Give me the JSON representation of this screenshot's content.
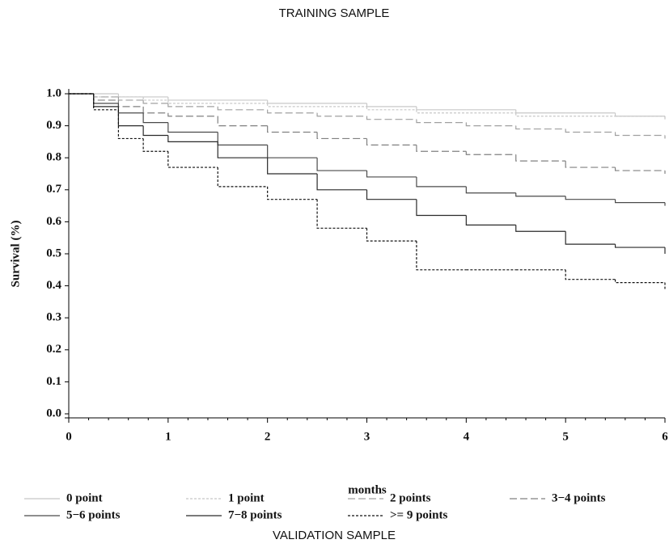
{
  "chart_data": {
    "type": "step-line",
    "title": "TRAINING SAMPLE",
    "subtitle": "VALIDATION SAMPLE",
    "x_label": "months",
    "y_label": "Survival (%)",
    "x": [
      0,
      0.25,
      0.5,
      0.75,
      1,
      1.5,
      2,
      2.5,
      3,
      3.5,
      4,
      4.5,
      5,
      5.5,
      6
    ],
    "series": [
      {
        "name": "0 point",
        "color": "#c8c8c8",
        "dash": "solid",
        "values": [
          1,
          1,
          0.99,
          0.99,
          0.98,
          0.98,
          0.97,
          0.97,
          0.96,
          0.95,
          0.95,
          0.94,
          0.94,
          0.93,
          0.92
        ]
      },
      {
        "name": "1 point",
        "color": "#c8c8c8",
        "dash": "short",
        "values": [
          1,
          0.99,
          0.99,
          0.98,
          0.97,
          0.97,
          0.96,
          0.96,
          0.95,
          0.94,
          0.94,
          0.93,
          0.93,
          0.93,
          0.92
        ]
      },
      {
        "name": "2 points",
        "color": "#a0a0a0",
        "dash": "long",
        "values": [
          1,
          0.99,
          0.98,
          0.97,
          0.96,
          0.95,
          0.94,
          0.93,
          0.92,
          0.91,
          0.9,
          0.89,
          0.88,
          0.87,
          0.86
        ]
      },
      {
        "name": "3−4 points",
        "color": "#808080",
        "dash": "long",
        "values": [
          1,
          0.98,
          0.96,
          0.94,
          0.93,
          0.9,
          0.88,
          0.86,
          0.84,
          0.82,
          0.81,
          0.79,
          0.77,
          0.76,
          0.75
        ]
      },
      {
        "name": "5−6 points",
        "color": "#4a4a4a",
        "dash": "solid",
        "values": [
          1,
          0.97,
          0.94,
          0.91,
          0.88,
          0.84,
          0.8,
          0.76,
          0.74,
          0.71,
          0.69,
          0.68,
          0.67,
          0.66,
          0.65
        ]
      },
      {
        "name": "7−8 points",
        "color": "#2a2a2a",
        "dash": "solid",
        "values": [
          1,
          0.96,
          0.9,
          0.87,
          0.85,
          0.8,
          0.75,
          0.7,
          0.67,
          0.62,
          0.59,
          0.57,
          0.53,
          0.52,
          0.5
        ]
      },
      {
        "name": ">= 9 points",
        "color": "#111111",
        "dash": "short",
        "values": [
          1,
          0.95,
          0.86,
          0.82,
          0.77,
          0.71,
          0.67,
          0.58,
          0.54,
          0.45,
          0.45,
          0.45,
          0.42,
          0.41,
          0.39
        ]
      }
    ],
    "xlim": [
      0,
      6
    ],
    "xticks": [
      0,
      1,
      2,
      3,
      4,
      5,
      6
    ],
    "ylim": [
      0,
      1
    ],
    "yticks": [
      {
        "value": 0,
        "label": "0.0"
      },
      0.1,
      0.2,
      0.3,
      0.4,
      0.5,
      0.6,
      0.7,
      0.8,
      0.9,
      {
        "value": 1,
        "label": "1.0"
      }
    ]
  }
}
